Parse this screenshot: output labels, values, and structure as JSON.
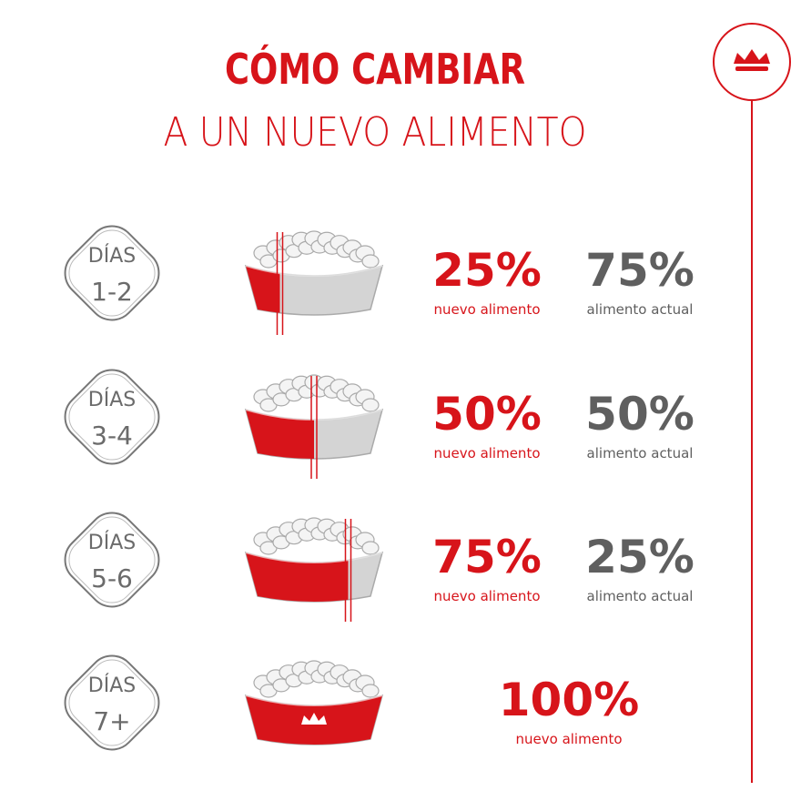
{
  "header": {
    "title": "CÓMO CAMBIAR",
    "subtitle": "A UN NUEVO ALIMENTO"
  },
  "rows": [
    {
      "days_label": "DÍAS",
      "days": "1-2",
      "new_percent": "25%",
      "new_label": "nuevo alimento",
      "current_percent": "75%",
      "current_label": "alimento actual"
    },
    {
      "days_label": "DÍAS",
      "days": "3-4",
      "new_percent": "50%",
      "new_label": "nuevo alimento",
      "current_percent": "50%",
      "current_label": "alimento actual"
    },
    {
      "days_label": "DÍAS",
      "days": "5-6",
      "new_percent": "75%",
      "new_label": "nuevo alimento",
      "current_percent": "25%",
      "current_label": "alimento actual"
    },
    {
      "days_label": "DÍAS",
      "days": "7+",
      "new_percent": "100%",
      "new_label": "nuevo alimento"
    }
  ]
}
